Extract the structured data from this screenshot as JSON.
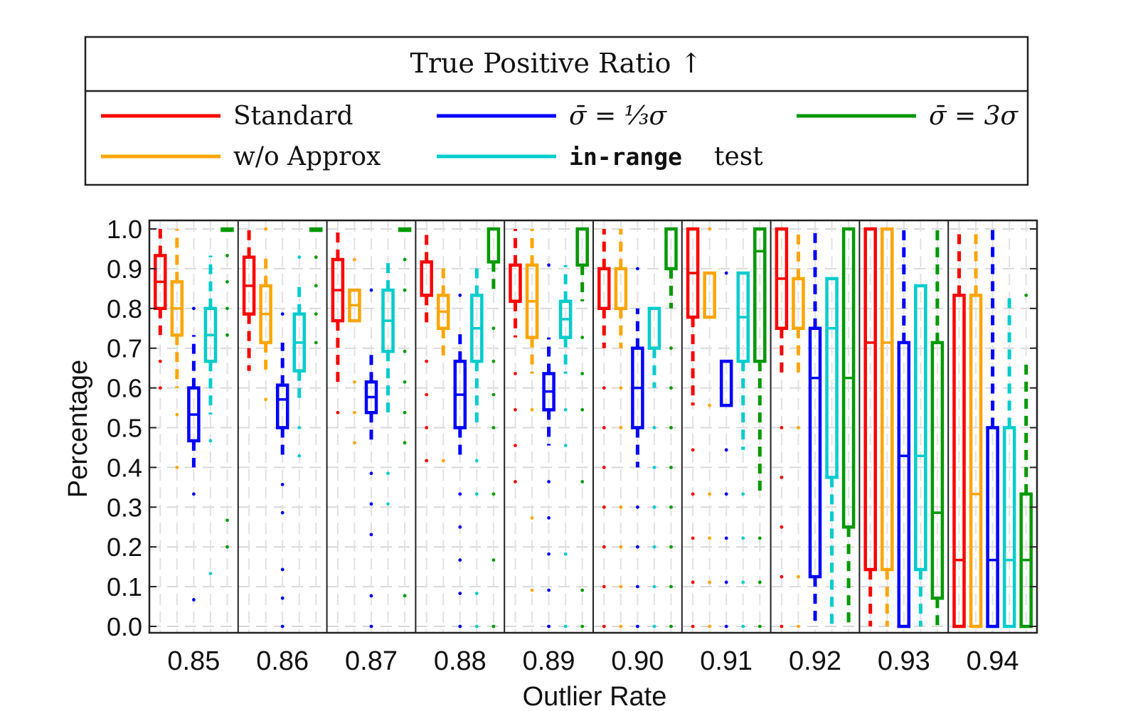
{
  "chart_data": {
    "type": "box",
    "title": "True Positive Ratio ↑",
    "xlabel": "Outlier Rate",
    "ylabel": "Percentage",
    "ylim": [
      0.0,
      1.0
    ],
    "yticks": [
      "0.0",
      "0.1",
      "0.2",
      "0.3",
      "0.4",
      "0.5",
      "0.6",
      "0.7",
      "0.8",
      "0.9",
      "1.0"
    ],
    "grid": true,
    "legend_position": "top",
    "categories": [
      "0.85",
      "0.86",
      "0.87",
      "0.88",
      "0.89",
      "0.90",
      "0.91",
      "0.92",
      "0.93",
      "0.94"
    ],
    "series": [
      {
        "name": "Standard",
        "legend_label": "Standard",
        "color": "#ff0000",
        "boxes": [
          {
            "q1": 0.8,
            "median": 0.867,
            "q3": 0.933,
            "lo": 0.733,
            "hi": 1.0,
            "outliers": [
              0.667,
              0.6
            ]
          },
          {
            "q1": 0.786,
            "median": 0.857,
            "q3": 0.929,
            "lo": 0.643,
            "hi": 1.0,
            "outliers": []
          },
          {
            "q1": 0.769,
            "median": 0.846,
            "q3": 0.923,
            "lo": 0.615,
            "hi": 1.0,
            "outliers": [
              0.538
            ]
          },
          {
            "q1": 0.833,
            "median": 0.917,
            "q3": 0.917,
            "lo": 0.75,
            "hi": 1.0,
            "outliers": [
              0.667,
              0.583,
              0.5,
              0.417
            ]
          },
          {
            "q1": 0.818,
            "median": 0.909,
            "q3": 0.909,
            "lo": 0.727,
            "hi": 1.0,
            "outliers": [
              0.636,
              0.545,
              0.455,
              0.364
            ]
          },
          {
            "q1": 0.8,
            "median": 0.9,
            "q3": 0.9,
            "lo": 0.7,
            "hi": 1.0,
            "outliers": [
              0.6,
              0.5,
              0.4,
              0.3,
              0.2,
              0.1,
              0.0
            ]
          },
          {
            "q1": 0.778,
            "median": 0.889,
            "q3": 1.0,
            "lo": 0.556,
            "hi": 1.0,
            "outliers": [
              0.444,
              0.333,
              0.222,
              0.111,
              0.0
            ]
          },
          {
            "q1": 0.75,
            "median": 0.875,
            "q3": 1.0,
            "lo": 0.625,
            "hi": 1.0,
            "outliers": [
              0.5,
              0.375,
              0.25,
              0.125,
              0.0
            ]
          },
          {
            "q1": 0.143,
            "median": 0.714,
            "q3": 1.0,
            "lo": 0.0,
            "hi": 1.0,
            "outliers": []
          },
          {
            "q1": 0.0,
            "median": 0.167,
            "q3": 0.833,
            "lo": 0.0,
            "hi": 1.0,
            "outliers": []
          }
        ]
      },
      {
        "name": "sigma_third",
        "legend_label": "σ̄ = ⅓σ",
        "color": "#0000ff",
        "boxes": [
          {
            "q1": 0.467,
            "median": 0.533,
            "q3": 0.6,
            "lo": 0.4,
            "hi": 0.733,
            "outliers": [
              0.8,
              0.333,
              0.067
            ]
          },
          {
            "q1": 0.5,
            "median": 0.571,
            "q3": 0.607,
            "lo": 0.429,
            "hi": 0.714,
            "outliers": [
              0.786,
              0.357,
              0.286,
              0.143,
              0.071,
              0.0
            ]
          },
          {
            "q1": 0.538,
            "median": 0.577,
            "q3": 0.615,
            "lo": 0.462,
            "hi": 0.692,
            "outliers": [
              0.846,
              0.385,
              0.308,
              0.231,
              0.077,
              0.0
            ]
          },
          {
            "q1": 0.5,
            "median": 0.583,
            "q3": 0.667,
            "lo": 0.417,
            "hi": 0.75,
            "outliers": [
              0.833,
              0.333,
              0.25,
              0.167,
              0.083,
              0.0
            ]
          },
          {
            "q1": 0.545,
            "median": 0.591,
            "q3": 0.636,
            "lo": 0.455,
            "hi": 0.727,
            "outliers": [
              0.909,
              0.364,
              0.273,
              0.182,
              0.091,
              0.0
            ]
          },
          {
            "q1": 0.5,
            "median": 0.6,
            "q3": 0.7,
            "lo": 0.4,
            "hi": 0.8,
            "outliers": [
              0.9,
              0.3,
              0.2,
              0.1,
              0.0
            ]
          },
          {
            "q1": 0.556,
            "median": 0.556,
            "q3": 0.667,
            "lo": 0.556,
            "hi": 0.667,
            "outliers": [
              0.889,
              0.444,
              0.333,
              0.222,
              0.111,
              0.0
            ]
          },
          {
            "q1": 0.125,
            "median": 0.625,
            "q3": 0.75,
            "lo": 0.0,
            "hi": 1.0,
            "outliers": []
          },
          {
            "q1": 0.0,
            "median": 0.429,
            "q3": 0.714,
            "lo": 0.0,
            "hi": 1.0,
            "outliers": []
          },
          {
            "q1": 0.0,
            "median": 0.167,
            "q3": 0.5,
            "lo": 0.0,
            "hi": 1.0,
            "outliers": []
          }
        ]
      },
      {
        "name": "sigma_3x",
        "legend_label": "σ̄ = 3σ",
        "color": "#009900",
        "boxes": [
          {
            "q1": 1.0,
            "median": 1.0,
            "q3": 1.0,
            "lo": 1.0,
            "hi": 1.0,
            "outliers": [
              0.933,
              0.867,
              0.8,
              0.733,
              0.267,
              0.2
            ]
          },
          {
            "q1": 1.0,
            "median": 1.0,
            "q3": 1.0,
            "lo": 1.0,
            "hi": 1.0,
            "outliers": [
              0.929,
              0.857,
              0.786,
              0.714
            ]
          },
          {
            "q1": 1.0,
            "median": 1.0,
            "q3": 1.0,
            "lo": 1.0,
            "hi": 1.0,
            "outliers": [
              0.923,
              0.846,
              0.692,
              0.615,
              0.538,
              0.462,
              0.077
            ]
          },
          {
            "q1": 0.917,
            "median": 0.917,
            "q3": 1.0,
            "lo": 0.833,
            "hi": 1.0,
            "outliers": [
              0.75,
              0.667,
              0.583,
              0.5,
              0.333,
              0.167,
              0.0
            ]
          },
          {
            "q1": 0.909,
            "median": 1.0,
            "q3": 1.0,
            "lo": 0.818,
            "hi": 1.0,
            "outliers": [
              0.727,
              0.636,
              0.545,
              0.364,
              0.091,
              0.0
            ]
          },
          {
            "q1": 0.9,
            "median": 1.0,
            "q3": 1.0,
            "lo": 0.8,
            "hi": 1.0,
            "outliers": [
              0.7,
              0.6,
              0.5,
              0.4,
              0.3,
              0.2,
              0.1,
              0.0
            ]
          },
          {
            "q1": 0.667,
            "median": 0.944,
            "q3": 1.0,
            "lo": 0.333,
            "hi": 1.0,
            "outliers": [
              0.222,
              0.111,
              0.0
            ]
          },
          {
            "q1": 0.25,
            "median": 0.625,
            "q3": 1.0,
            "lo": 0.0,
            "hi": 1.0,
            "outliers": []
          },
          {
            "q1": 0.071,
            "median": 0.286,
            "q3": 0.714,
            "lo": 0.0,
            "hi": 1.0,
            "outliers": []
          },
          {
            "q1": 0.0,
            "median": 0.167,
            "q3": 0.333,
            "lo": 0.0,
            "hi": 0.667,
            "outliers": [
              0.833
            ]
          }
        ]
      },
      {
        "name": "wo_approx",
        "legend_label": "w/o Approx",
        "color": "#ffa500",
        "boxes": [
          {
            "q1": 0.733,
            "median": 0.8,
            "q3": 0.867,
            "lo": 0.6,
            "hi": 1.0,
            "outliers": [
              0.533,
              0.4
            ]
          },
          {
            "q1": 0.714,
            "median": 0.786,
            "q3": 0.857,
            "lo": 0.643,
            "hi": 0.929,
            "outliers": [
              1.0,
              0.571
            ]
          },
          {
            "q1": 0.769,
            "median": 0.808,
            "q3": 0.846,
            "lo": 0.769,
            "hi": 0.846,
            "outliers": [
              0.923,
              0.615,
              0.538,
              0.462
            ]
          },
          {
            "q1": 0.75,
            "median": 0.792,
            "q3": 0.833,
            "lo": 0.667,
            "hi": 0.917,
            "outliers": [
              0.417
            ]
          },
          {
            "q1": 0.727,
            "median": 0.818,
            "q3": 0.909,
            "lo": 0.636,
            "hi": 1.0,
            "outliers": [
              0.545,
              0.273,
              0.091
            ]
          },
          {
            "q1": 0.8,
            "median": 0.9,
            "q3": 0.9,
            "lo": 0.7,
            "hi": 1.0,
            "outliers": [
              0.6,
              0.5,
              0.3,
              0.2,
              0.1,
              0.0
            ]
          },
          {
            "q1": 0.778,
            "median": 0.889,
            "q3": 0.889,
            "lo": 0.778,
            "hi": 0.889,
            "outliers": [
              1.0,
              0.556,
              0.333,
              0.222,
              0.111,
              0.0
            ]
          },
          {
            "q1": 0.75,
            "median": 0.875,
            "q3": 0.875,
            "lo": 0.625,
            "hi": 1.0,
            "outliers": [
              0.5,
              0.125,
              0.0
            ]
          },
          {
            "q1": 0.143,
            "median": 0.714,
            "q3": 1.0,
            "lo": 0.0,
            "hi": 1.0,
            "outliers": []
          },
          {
            "q1": 0.0,
            "median": 0.333,
            "q3": 0.833,
            "lo": 0.0,
            "hi": 1.0,
            "outliers": []
          }
        ]
      },
      {
        "name": "in_range_test",
        "legend_label": "in-range",
        "legend_suffix": "test",
        "color": "#00cccc",
        "boxes": [
          {
            "q1": 0.667,
            "median": 0.733,
            "q3": 0.8,
            "lo": 0.533,
            "hi": 0.933,
            "outliers": [
              0.467,
              0.133
            ]
          },
          {
            "q1": 0.643,
            "median": 0.714,
            "q3": 0.786,
            "lo": 0.571,
            "hi": 0.857,
            "outliers": [
              0.929,
              0.5,
              0.429
            ]
          },
          {
            "q1": 0.692,
            "median": 0.769,
            "q3": 0.846,
            "lo": 0.538,
            "hi": 0.923,
            "outliers": [
              0.385,
              0.308
            ]
          },
          {
            "q1": 0.667,
            "median": 0.75,
            "q3": 0.833,
            "lo": 0.5,
            "hi": 0.917,
            "outliers": [
              0.417,
              0.333,
              0.083,
              0.0
            ]
          },
          {
            "q1": 0.727,
            "median": 0.773,
            "q3": 0.818,
            "lo": 0.636,
            "hi": 0.909,
            "outliers": [
              0.545,
              0.455,
              0.182,
              0.0
            ]
          },
          {
            "q1": 0.7,
            "median": 0.7,
            "q3": 0.8,
            "lo": 0.6,
            "hi": 0.8,
            "outliers": [
              0.5,
              0.4,
              0.3,
              0.2,
              0.1,
              0.0
            ]
          },
          {
            "q1": 0.667,
            "median": 0.778,
            "q3": 0.889,
            "lo": 0.444,
            "hi": 0.889,
            "outliers": [
              0.333,
              0.222,
              0.111,
              0.0
            ]
          },
          {
            "q1": 0.375,
            "median": 0.75,
            "q3": 0.875,
            "lo": 0.0,
            "hi": 0.875,
            "outliers": []
          },
          {
            "q1": 0.143,
            "median": 0.429,
            "q3": 0.857,
            "lo": 0.0,
            "hi": 0.857,
            "outliers": []
          },
          {
            "q1": 0.0,
            "median": 0.167,
            "q3": 0.5,
            "lo": 0.0,
            "hi": 0.833,
            "outliers": []
          }
        ]
      }
    ]
  }
}
